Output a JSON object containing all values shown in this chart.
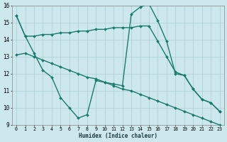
{
  "xlabel": "Humidex (Indice chaleur)",
  "xlim": [
    -0.5,
    23.5
  ],
  "ylim": [
    9,
    16
  ],
  "yticks": [
    9,
    10,
    11,
    12,
    13,
    14,
    15,
    16
  ],
  "xticks": [
    0,
    1,
    2,
    3,
    4,
    5,
    6,
    7,
    8,
    9,
    10,
    11,
    12,
    13,
    14,
    15,
    16,
    17,
    18,
    19,
    20,
    21,
    22,
    23
  ],
  "background_color": "#cde8ec",
  "grid_color": "#aacdd4",
  "line_color": "#1a7a6e",
  "series": [
    {
      "x": [
        0,
        1,
        2,
        3,
        4,
        5,
        6,
        7,
        8,
        9,
        10,
        11,
        12,
        13,
        14,
        15,
        16,
        17,
        18,
        19,
        20,
        21,
        22,
        23
      ],
      "y": [
        15.4,
        14.2,
        14.2,
        14.3,
        14.3,
        14.4,
        14.4,
        14.5,
        14.5,
        14.6,
        14.6,
        14.7,
        14.7,
        14.7,
        14.8,
        14.8,
        13.9,
        13.0,
        12.1,
        11.9,
        11.1,
        10.5,
        10.3,
        9.8
      ]
    },
    {
      "x": [
        0,
        1,
        2,
        3,
        4,
        5,
        6,
        7,
        8,
        9,
        10,
        11,
        12,
        13,
        14,
        15,
        16,
        17,
        18,
        19,
        20,
        21,
        22,
        23
      ],
      "y": [
        15.4,
        14.2,
        13.2,
        12.2,
        11.8,
        10.6,
        10.0,
        9.4,
        9.6,
        11.6,
        11.5,
        11.4,
        11.3,
        15.5,
        15.9,
        16.1,
        15.1,
        13.9,
        12.0,
        11.9,
        11.1,
        10.5,
        10.3,
        9.8
      ]
    },
    {
      "x": [
        0,
        1,
        2,
        3,
        4,
        5,
        6,
        7,
        8,
        9,
        10,
        11,
        12,
        13,
        14,
        15,
        16,
        17,
        18,
        19,
        20,
        21,
        22,
        23
      ],
      "y": [
        13.1,
        13.2,
        13.0,
        12.8,
        12.6,
        12.4,
        12.2,
        12.0,
        11.8,
        11.7,
        11.5,
        11.3,
        11.1,
        11.0,
        10.8,
        10.6,
        10.4,
        10.2,
        10.0,
        9.8,
        9.6,
        9.4,
        9.2,
        9.0
      ]
    }
  ]
}
